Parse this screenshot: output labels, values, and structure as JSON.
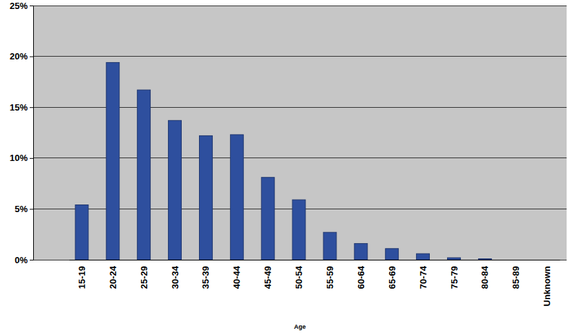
{
  "chart_data": {
    "type": "bar",
    "x_label": "Age",
    "categories": [
      "15-19",
      "20-24",
      "25-29",
      "30-34",
      "35-39",
      "40-44",
      "45-49",
      "50-54",
      "55-59",
      "60-64",
      "65-69",
      "70-74",
      "75-79",
      "80-84",
      "85-89",
      "Unknown"
    ],
    "values": [
      5.4,
      19.4,
      16.7,
      13.7,
      12.2,
      12.3,
      8.1,
      5.9,
      2.7,
      1.6,
      1.1,
      0.6,
      0.2,
      0.1,
      0,
      0
    ],
    "color": "#2e4f9e",
    "ylim": [
      0,
      25
    ],
    "yticks": [
      {
        "value": 0,
        "label": "0%"
      },
      {
        "value": 5,
        "label": "5%"
      },
      {
        "value": 10,
        "label": "10%"
      },
      {
        "value": 15,
        "label": "15%"
      },
      {
        "value": 20,
        "label": "20%"
      },
      {
        "value": 25,
        "label": "25%"
      }
    ],
    "grid": true
  }
}
